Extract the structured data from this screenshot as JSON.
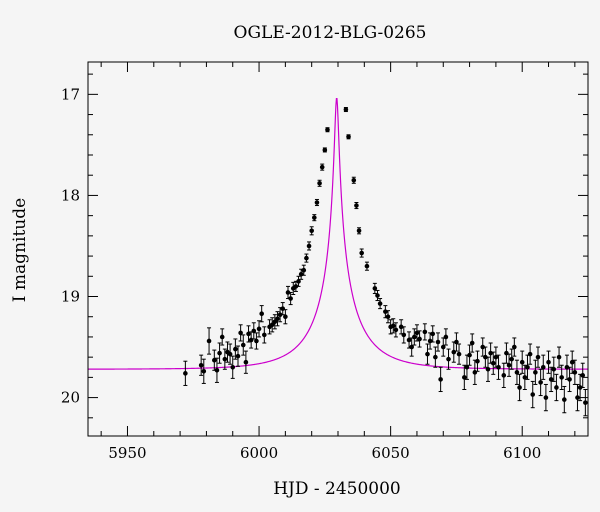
{
  "chart_data": {
    "type": "scatter",
    "title": "OGLE-2012-BLG-0265",
    "xlabel": "HJD - 2450000",
    "ylabel": "I magnitude",
    "xlim": [
      5935,
      6125
    ],
    "ylim": [
      20.38,
      16.68
    ],
    "y_inverted": true,
    "x_ticks": [
      5950,
      6000,
      6050,
      6100
    ],
    "y_ticks": [
      17,
      18,
      19,
      20
    ],
    "x_minor_step": 10,
    "y_minor_step": 0.2,
    "grid": false,
    "colors": {
      "points": "#000000",
      "model": "#cc00cc"
    },
    "model": {
      "name": "",
      "t0": 6029.5,
      "u0": 0.038,
      "tE": 19,
      "fs": 0.43,
      "base_mag": 19.72
    },
    "series": [
      {
        "name": "",
        "points": [
          [
            5972,
            19.76,
            0.12
          ],
          [
            5978,
            19.68,
            0.1
          ],
          [
            5979,
            19.74,
            0.12
          ],
          [
            5981,
            19.44,
            0.13
          ],
          [
            5983,
            19.63,
            0.1
          ],
          [
            5984,
            19.73,
            0.12
          ],
          [
            5985,
            19.56,
            0.1
          ],
          [
            5986,
            19.4,
            0.08
          ],
          [
            5987,
            19.62,
            0.1
          ],
          [
            5988,
            19.55,
            0.1
          ],
          [
            5989,
            19.57,
            0.1
          ],
          [
            5990,
            19.7,
            0.11
          ],
          [
            5991,
            19.52,
            0.1
          ],
          [
            5992,
            19.59,
            0.1
          ],
          [
            5993,
            19.36,
            0.08
          ],
          [
            5994,
            19.48,
            0.1
          ],
          [
            5995,
            19.65,
            0.11
          ],
          [
            5996,
            19.37,
            0.08
          ],
          [
            5997,
            19.43,
            0.08
          ],
          [
            5998,
            19.34,
            0.08
          ],
          [
            5999,
            19.44,
            0.08
          ],
          [
            6000,
            19.32,
            0.08
          ],
          [
            6001,
            19.17,
            0.08
          ],
          [
            6002,
            19.38,
            0.08
          ],
          [
            6004,
            19.3,
            0.07
          ],
          [
            6005,
            19.28,
            0.07
          ],
          [
            6006,
            19.25,
            0.07
          ],
          [
            6007,
            19.22,
            0.07
          ],
          [
            6008,
            19.18,
            0.07
          ],
          [
            6009,
            19.12,
            0.06
          ],
          [
            6010,
            19.2,
            0.07
          ],
          [
            6011,
            18.96,
            0.06
          ],
          [
            6012,
            19.02,
            0.06
          ],
          [
            6013,
            18.92,
            0.06
          ],
          [
            6014,
            18.9,
            0.05
          ],
          [
            6015,
            18.85,
            0.05
          ],
          [
            6016,
            18.78,
            0.05
          ],
          [
            6017,
            18.74,
            0.05
          ],
          [
            6018,
            18.62,
            0.04
          ],
          [
            6019,
            18.5,
            0.04
          ],
          [
            6020,
            18.35,
            0.04
          ],
          [
            6021,
            18.22,
            0.03
          ],
          [
            6022,
            18.07,
            0.03
          ],
          [
            6023,
            17.88,
            0.03
          ],
          [
            6024,
            17.72,
            0.03
          ],
          [
            6025,
            17.55,
            0.02
          ],
          [
            6026,
            17.35,
            0.02
          ],
          [
            6033,
            17.15,
            0.02
          ],
          [
            6034,
            17.42,
            0.02
          ],
          [
            6036,
            17.85,
            0.03
          ],
          [
            6037,
            18.1,
            0.03
          ],
          [
            6038,
            18.35,
            0.03
          ],
          [
            6039,
            18.57,
            0.04
          ],
          [
            6041,
            18.7,
            0.04
          ],
          [
            6044,
            18.92,
            0.05
          ],
          [
            6045,
            18.99,
            0.05
          ],
          [
            6046,
            19.07,
            0.05
          ],
          [
            6048,
            19.15,
            0.06
          ],
          [
            6049,
            19.2,
            0.06
          ],
          [
            6050,
            19.3,
            0.07
          ],
          [
            6051,
            19.29,
            0.07
          ],
          [
            6052,
            19.33,
            0.07
          ],
          [
            6054,
            19.3,
            0.07
          ],
          [
            6055,
            19.38,
            0.08
          ],
          [
            6057,
            19.43,
            0.08
          ],
          [
            6058,
            19.5,
            0.09
          ],
          [
            6059,
            19.4,
            0.08
          ],
          [
            6060,
            19.36,
            0.08
          ],
          [
            6061,
            19.42,
            0.08
          ],
          [
            6063,
            19.35,
            0.08
          ],
          [
            6064,
            19.57,
            0.1
          ],
          [
            6065,
            19.44,
            0.08
          ],
          [
            6066,
            19.37,
            0.08
          ],
          [
            6067,
            19.6,
            0.1
          ],
          [
            6068,
            19.45,
            0.09
          ],
          [
            6069,
            19.82,
            0.12
          ],
          [
            6070,
            19.5,
            0.09
          ],
          [
            6071,
            19.4,
            0.08
          ],
          [
            6072,
            19.62,
            0.1
          ],
          [
            6074,
            19.55,
            0.1
          ],
          [
            6075,
            19.45,
            0.09
          ],
          [
            6076,
            19.57,
            0.1
          ],
          [
            6078,
            19.8,
            0.12
          ],
          [
            6079,
            19.7,
            0.12
          ],
          [
            6080,
            19.58,
            0.1
          ],
          [
            6081,
            19.46,
            0.09
          ],
          [
            6082,
            19.75,
            0.12
          ],
          [
            6083,
            19.64,
            0.1
          ],
          [
            6085,
            19.5,
            0.09
          ],
          [
            6086,
            19.6,
            0.1
          ],
          [
            6087,
            19.72,
            0.12
          ],
          [
            6088,
            19.56,
            0.1
          ],
          [
            6089,
            19.66,
            0.11
          ],
          [
            6090,
            19.6,
            0.1
          ],
          [
            6091,
            19.7,
            0.12
          ],
          [
            6093,
            19.78,
            0.12
          ],
          [
            6094,
            19.56,
            0.1
          ],
          [
            6095,
            19.68,
            0.11
          ],
          [
            6096,
            19.62,
            0.1
          ],
          [
            6097,
            19.5,
            0.09
          ],
          [
            6098,
            19.75,
            0.12
          ],
          [
            6099,
            19.9,
            0.13
          ],
          [
            6100,
            19.65,
            0.11
          ],
          [
            6101,
            19.8,
            0.12
          ],
          [
            6102,
            19.7,
            0.12
          ],
          [
            6103,
            19.57,
            0.1
          ],
          [
            6104,
            19.97,
            0.13
          ],
          [
            6105,
            19.75,
            0.12
          ],
          [
            6106,
            19.6,
            0.1
          ],
          [
            6107,
            19.85,
            0.13
          ],
          [
            6108,
            19.7,
            0.12
          ],
          [
            6109,
            20.0,
            0.13
          ],
          [
            6110,
            19.65,
            0.11
          ],
          [
            6111,
            19.82,
            0.12
          ],
          [
            6112,
            19.72,
            0.12
          ],
          [
            6113,
            19.9,
            0.13
          ],
          [
            6114,
            19.6,
            0.1
          ],
          [
            6115,
            19.8,
            0.12
          ],
          [
            6116,
            20.02,
            0.13
          ],
          [
            6117,
            19.7,
            0.12
          ],
          [
            6118,
            19.82,
            0.12
          ],
          [
            6119,
            19.65,
            0.11
          ],
          [
            6120,
            19.75,
            0.12
          ],
          [
            6121,
            20.0,
            0.13
          ],
          [
            6122,
            19.9,
            0.13
          ],
          [
            6123,
            19.78,
            0.12
          ],
          [
            6124,
            20.05,
            0.13
          ]
        ]
      }
    ]
  }
}
